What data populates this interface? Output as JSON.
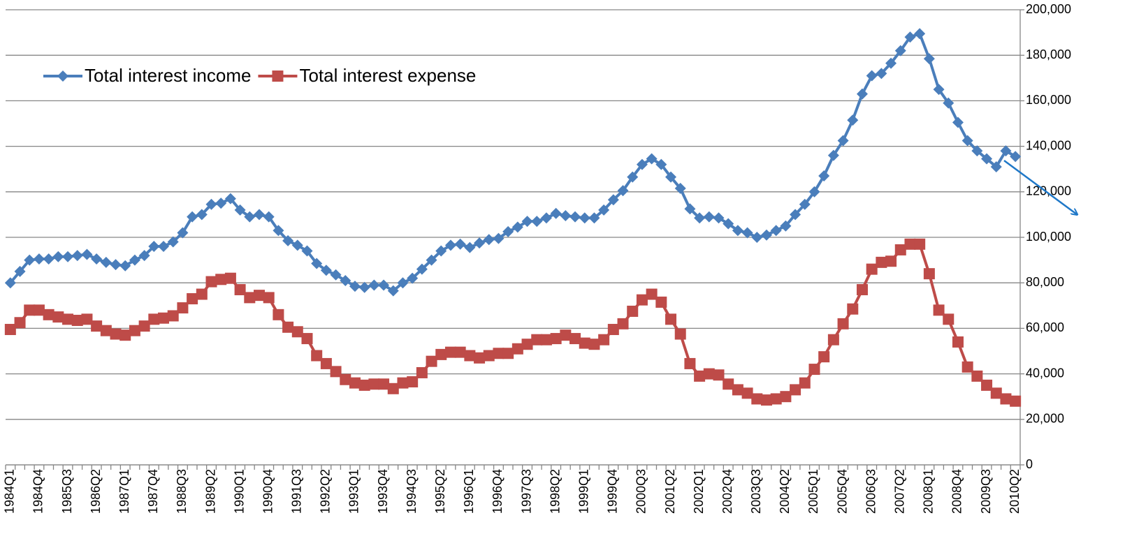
{
  "chart_data": {
    "type": "line",
    "categories": [
      "1984Q1",
      null,
      null,
      "1984Q4",
      null,
      null,
      "1985Q3",
      null,
      null,
      "1986Q2",
      null,
      null,
      "1987Q1",
      null,
      null,
      "1987Q4",
      null,
      null,
      "1988Q3",
      null,
      null,
      "1989Q2",
      null,
      null,
      "1990Q1",
      null,
      null,
      "1990Q4",
      null,
      null,
      "1991Q3",
      null,
      null,
      "1992Q2",
      null,
      null,
      "1993Q1",
      null,
      null,
      "1993Q4",
      null,
      null,
      "1994Q3",
      null,
      null,
      "1995Q2",
      null,
      null,
      "1996Q1",
      null,
      null,
      "1996Q4",
      null,
      null,
      "1997Q3",
      null,
      null,
      "1998Q2",
      null,
      null,
      "1999Q1",
      null,
      null,
      "1999Q4",
      null,
      null,
      "2000Q3",
      null,
      null,
      "2001Q2",
      null,
      null,
      "2002Q1",
      null,
      null,
      "2002Q4",
      null,
      null,
      "2003Q3",
      null,
      null,
      "2004Q2",
      null,
      null,
      "2005Q1",
      null,
      null,
      "2005Q4",
      null,
      null,
      "2006Q3",
      null,
      null,
      "2007Q2",
      null,
      null,
      "2008Q1",
      null,
      null,
      "2008Q4",
      null,
      null,
      "2009Q3",
      null,
      null,
      "2010Q2"
    ],
    "series": [
      {
        "name": "Total interest income",
        "color": "#4a7ebb",
        "marker": "diamond",
        "values": [
          80000,
          85000,
          90000,
          90500,
          90500,
          91500,
          91500,
          92000,
          92500,
          90500,
          89000,
          88000,
          87500,
          90000,
          92000,
          96000,
          96000,
          98000,
          102000,
          109000,
          110000,
          114500,
          115000,
          117000,
          112000,
          109000,
          110000,
          109000,
          103000,
          98500,
          96500,
          94000,
          88500,
          85500,
          83500,
          81000,
          78500,
          78000,
          79000,
          79000,
          76500,
          80000,
          82000,
          86000,
          90000,
          94000,
          96500,
          97000,
          95500,
          97500,
          99000,
          99500,
          102500,
          104500,
          107000,
          107000,
          108500,
          110500,
          109500,
          109000,
          108500,
          108500,
          112000,
          116500,
          120500,
          126500,
          132000,
          134500,
          132000,
          126500,
          121500,
          112500,
          108500,
          109000,
          108500,
          106000,
          103000,
          102000,
          100000,
          101000,
          103000,
          105000,
          110000,
          114500,
          120000,
          127000,
          136000,
          142500,
          151500,
          163000,
          171000,
          172000,
          176500,
          182000,
          188000,
          189500,
          178500,
          165000,
          159000,
          150500,
          142500,
          138000,
          134500,
          131000,
          138000,
          135500
        ]
      },
      {
        "name": "Total interest expense",
        "color": "#be4b48",
        "marker": "square",
        "values": [
          59500,
          62500,
          68000,
          68000,
          66000,
          65000,
          64000,
          63500,
          64000,
          61000,
          59000,
          57500,
          57000,
          59000,
          61000,
          64000,
          64500,
          65500,
          69000,
          73000,
          75000,
          80500,
          81500,
          82000,
          77000,
          73500,
          74500,
          73500,
          66000,
          60500,
          58500,
          55500,
          48000,
          44500,
          41000,
          37500,
          36000,
          35000,
          35500,
          35500,
          33500,
          36000,
          36500,
          40500,
          45500,
          48500,
          49500,
          49500,
          48000,
          47000,
          48000,
          49000,
          49000,
          51000,
          53000,
          55000,
          55000,
          55500,
          57000,
          55500,
          53500,
          53000,
          55000,
          59500,
          62000,
          67500,
          72500,
          75000,
          71500,
          64000,
          57500,
          44500,
          39000,
          40000,
          39500,
          35500,
          33000,
          31500,
          29000,
          28500,
          29000,
          30000,
          33000,
          36000,
          42000,
          47500,
          55000,
          62000,
          68500,
          77000,
          86000,
          89000,
          89500,
          94500,
          97000,
          97000,
          84000,
          68000,
          64000,
          54000,
          43000,
          39000,
          35000,
          31500,
          29000,
          28000
        ]
      }
    ],
    "ylim": [
      0,
      200000
    ],
    "yticks": [
      0,
      {
        "value": 20000,
        "label": "20,000"
      },
      {
        "value": 40000,
        "label": "40,000"
      },
      {
        "value": 60000,
        "label": "60,000"
      },
      {
        "value": 80000,
        "label": "80,000"
      },
      {
        "value": 100000,
        "label": "100,000"
      },
      {
        "value": 120000,
        "label": "120,000"
      },
      {
        "value": 140000,
        "label": "140,000"
      },
      {
        "value": 160000,
        "label": "160,000"
      },
      {
        "value": 180000,
        "label": "180,000"
      },
      {
        "value": 200000,
        "label": "200,000"
      }
    ],
    "y_axis_side": "right",
    "grid": true,
    "legend": "top-left"
  }
}
